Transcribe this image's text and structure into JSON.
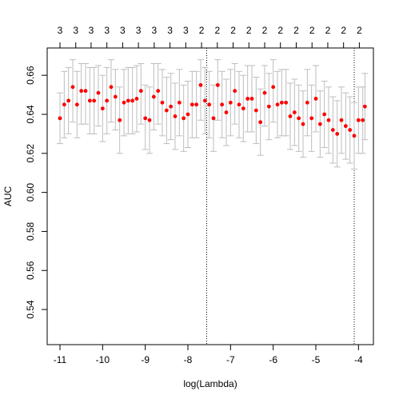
{
  "chart_data": {
    "type": "scatter",
    "title": "",
    "xlabel": "log(Lambda)",
    "ylabel": "AUC",
    "xlim": [
      -11.3,
      -3.65
    ],
    "ylim": [
      0.522,
      0.674
    ],
    "x_ticks": [
      -11,
      -10,
      -9,
      -8,
      -7,
      -6,
      -5,
      -4
    ],
    "x_tick_labels": [
      "-11",
      "-10",
      "-9",
      "-8",
      "-7",
      "-6",
      "-5",
      "-4"
    ],
    "y_ticks": [
      0.54,
      0.56,
      0.58,
      0.6,
      0.62,
      0.64,
      0.66
    ],
    "y_tick_labels": [
      "0.54",
      "0.56",
      "0.58",
      "0.60",
      "0.62",
      "0.64",
      "0.66"
    ],
    "top_axis": {
      "positions": [
        -11.0,
        -10.63,
        -10.27,
        -9.9,
        -9.53,
        -9.16,
        -8.79,
        -8.42,
        -8.05,
        -7.68,
        -7.31,
        -6.94,
        -6.57,
        -6.2,
        -5.83,
        -5.46,
        -5.09,
        -4.72,
        -4.35,
        -3.98
      ],
      "labels": [
        "3",
        "3",
        "3",
        "3",
        "3",
        "3",
        "3",
        "3",
        "3",
        "2",
        "2",
        "2",
        "2",
        "2",
        "2",
        "2",
        "2",
        "2",
        "2",
        "2"
      ]
    },
    "reference_lines_x": [
      -7.56,
      -4.1
    ],
    "colors": {
      "point": "#ff0000",
      "errorbar": "#bebebe",
      "axis": "#000000"
    },
    "series": [
      {
        "x": [
          -11.0,
          -10.9,
          -10.8,
          -10.7,
          -10.6,
          -10.5,
          -10.4,
          -10.3,
          -10.2,
          -10.1,
          -10.0,
          -9.9,
          -9.8,
          -9.7,
          -9.6,
          -9.5,
          -9.4,
          -9.3,
          -9.2,
          -9.1,
          -9.0,
          -8.9,
          -8.8,
          -8.7,
          -8.6,
          -8.5,
          -8.4,
          -8.3,
          -8.2,
          -8.1,
          -8.0,
          -7.9,
          -7.8,
          -7.7,
          -7.6,
          -7.5,
          -7.4,
          -7.3,
          -7.2,
          -7.1,
          -7.0,
          -6.9,
          -6.8,
          -6.7,
          -6.6,
          -6.5,
          -6.4,
          -6.3,
          -6.2,
          -6.1,
          -6.0,
          -5.9,
          -5.8,
          -5.7,
          -5.6,
          -5.5,
          -5.4,
          -5.3,
          -5.2,
          -5.1,
          -5.0,
          -4.9,
          -4.8,
          -4.7,
          -4.6,
          -4.5,
          -4.4,
          -4.3,
          -4.2,
          -4.1,
          -4.0,
          -3.9,
          -3.85
        ],
        "y": [
          0.638,
          0.645,
          0.647,
          0.654,
          0.645,
          0.652,
          0.652,
          0.647,
          0.647,
          0.651,
          0.643,
          0.647,
          0.654,
          0.649,
          0.637,
          0.646,
          0.647,
          0.647,
          0.648,
          0.652,
          0.638,
          0.637,
          0.649,
          0.652,
          0.646,
          0.642,
          0.644,
          0.639,
          0.646,
          0.638,
          0.64,
          0.645,
          0.645,
          0.655,
          0.647,
          0.645,
          0.638,
          0.655,
          0.645,
          0.641,
          0.646,
          0.652,
          0.645,
          0.643,
          0.648,
          0.648,
          0.642,
          0.636,
          0.651,
          0.644,
          0.654,
          0.645,
          0.646,
          0.646,
          0.639,
          0.641,
          0.638,
          0.635,
          0.646,
          0.638,
          0.648,
          0.635,
          0.64,
          0.637,
          0.632,
          0.63,
          0.637,
          0.634,
          0.632,
          0.629,
          0.637,
          0.637,
          0.644
        ],
        "yerr_low": [
          0.625,
          0.628,
          0.63,
          0.636,
          0.628,
          0.635,
          0.635,
          0.63,
          0.63,
          0.634,
          0.626,
          0.63,
          0.636,
          0.632,
          0.62,
          0.629,
          0.63,
          0.63,
          0.631,
          0.635,
          0.622,
          0.62,
          0.632,
          0.635,
          0.629,
          0.625,
          0.627,
          0.622,
          0.629,
          0.621,
          0.623,
          0.628,
          0.628,
          0.637,
          0.63,
          0.628,
          0.621,
          0.637,
          0.628,
          0.624,
          0.629,
          0.635,
          0.628,
          0.626,
          0.631,
          0.631,
          0.625,
          0.619,
          0.634,
          0.627,
          0.636,
          0.628,
          0.629,
          0.629,
          0.622,
          0.624,
          0.621,
          0.618,
          0.629,
          0.621,
          0.631,
          0.618,
          0.623,
          0.62,
          0.615,
          0.613,
          0.62,
          0.617,
          0.615,
          0.612,
          0.62,
          0.62,
          0.627
        ],
        "yerr_high": [
          0.651,
          0.662,
          0.664,
          0.668,
          0.662,
          0.666,
          0.666,
          0.664,
          0.664,
          0.665,
          0.66,
          0.664,
          0.668,
          0.663,
          0.654,
          0.663,
          0.664,
          0.664,
          0.665,
          0.666,
          0.655,
          0.654,
          0.666,
          0.666,
          0.663,
          0.659,
          0.661,
          0.656,
          0.663,
          0.655,
          0.657,
          0.662,
          0.662,
          0.668,
          0.664,
          0.662,
          0.655,
          0.668,
          0.662,
          0.658,
          0.663,
          0.666,
          0.662,
          0.66,
          0.665,
          0.665,
          0.659,
          0.653,
          0.665,
          0.661,
          0.668,
          0.662,
          0.663,
          0.663,
          0.656,
          0.658,
          0.655,
          0.652,
          0.663,
          0.655,
          0.665,
          0.652,
          0.657,
          0.654,
          0.649,
          0.647,
          0.654,
          0.651,
          0.649,
          0.646,
          0.654,
          0.654,
          0.661
        ]
      }
    ]
  }
}
